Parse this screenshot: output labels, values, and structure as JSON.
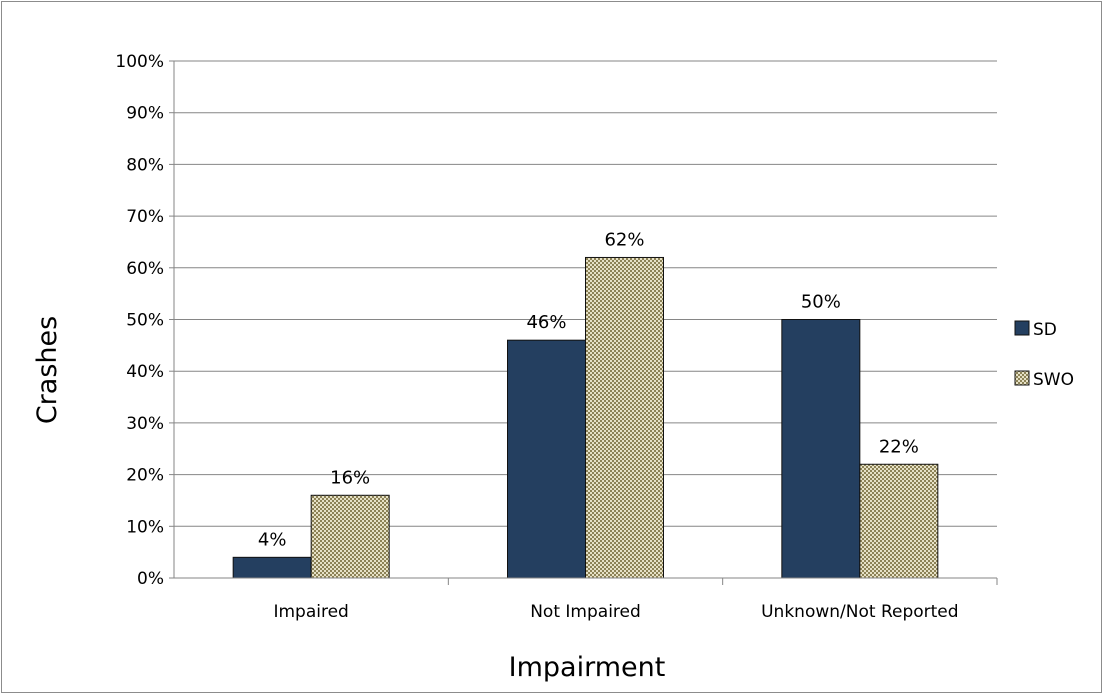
{
  "chart_data": {
    "type": "bar",
    "title": "",
    "xlabel": "Impairment",
    "ylabel": "Crashes",
    "categories": [
      "Impaired",
      "Not Impaired",
      "Unknown/Not Reported"
    ],
    "series": [
      {
        "name": "SD",
        "values": [
          4,
          46,
          50
        ],
        "labels": [
          "4%",
          "46%",
          "50%"
        ],
        "color": "#243f60",
        "pattern": "solid"
      },
      {
        "name": "SWO",
        "values": [
          16,
          62,
          22
        ],
        "labels": [
          "16%",
          "62%",
          "22%"
        ],
        "color": "#ded9b9",
        "pattern": "checkered"
      }
    ],
    "ylim": [
      0,
      100
    ],
    "yticks": [
      "0%",
      "10%",
      "20%",
      "30%",
      "40%",
      "50%",
      "60%",
      "70%",
      "80%",
      "90%",
      "100%"
    ],
    "grid": true,
    "legend_position": "right"
  }
}
